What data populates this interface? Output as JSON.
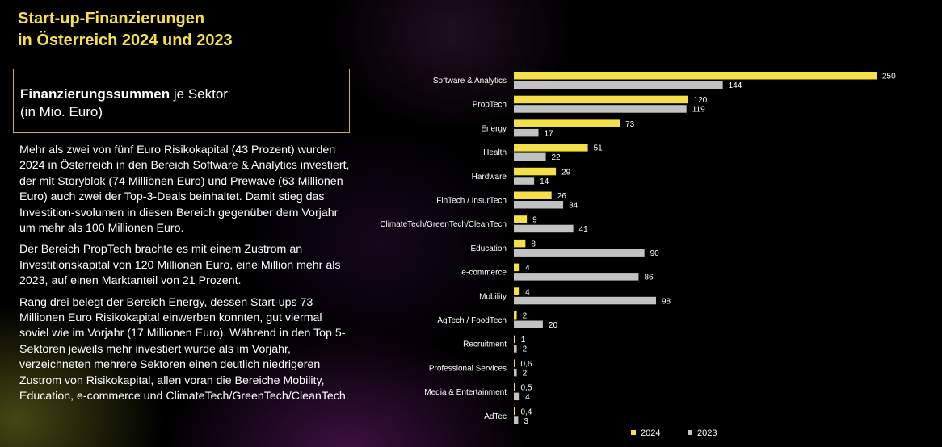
{
  "title": {
    "line1": "Start-up-Finanzierungen",
    "line2": "in Österreich 2024 und 2023"
  },
  "infobox": {
    "bold": "Finanzierungssummen",
    "rest": " je Sektor",
    "line2": "(in Mio. Euro)"
  },
  "paragraphs": [
    "Mehr als zwei von fünf Euro Risikokapital (43 Prozent) wurden 2024 in Österreich in den Bereich Software & Analytics investiert, der mit Storyblok (74 Millionen Euro) und Prewave (63 Millionen Euro) auch zwei der Top-3-Deals beinhaltet. Damit stieg das Investition-svolumen in diesen Bereich gegenüber dem Vorjahr um mehr als 100 Millionen Euro.",
    "Der Bereich PropTech brachte es mit einem Zustrom an Investitionskapital von 120 Millionen Euro, eine Million mehr als 2023, auf einen Marktanteil von 21 Prozent.",
    "Rang drei belegt der Bereich Energy, dessen Start-ups 73 Millionen Euro Risikokapital einwerben konnten, gut viermal soviel wie im Vorjahr (17 Millionen Euro). Während in den Top 5-Sektoren jeweils mehr investiert wurde als im Vorjahr, verzeichneten mehrere Sektoren einen deutlich niedrigeren Zustrom von Risikokapital, allen voran die Bereiche Mobility, Education, e-commerce und ClimateTech/GreenTech/CleanTech."
  ],
  "chart_data": {
    "type": "bar",
    "orientation": "horizontal",
    "categories": [
      "Software & Analytics",
      "PropTech",
      "Energy",
      "Health",
      "Hardware",
      "FinTech / InsurTech",
      "ClimateTech/GreenTech/CleanTech",
      "Education",
      "e-commerce",
      "Mobility",
      "AgTech / FoodTech",
      "Recruitment",
      "Professional Services",
      "Media & Entertainment",
      "AdTec"
    ],
    "series": [
      {
        "name": "2024",
        "color": "#f5e04a",
        "values": [
          250,
          120,
          73,
          51,
          29,
          26,
          9,
          8,
          4,
          4,
          2,
          1,
          0.6,
          0.5,
          0.4
        ],
        "labels": [
          "250",
          "120",
          "73",
          "51",
          "29",
          "26",
          "9",
          "8",
          "4",
          "4",
          "2",
          "1",
          "0,6",
          "0,5",
          "0,4"
        ]
      },
      {
        "name": "2023",
        "color": "#c2c2c2",
        "values": [
          144,
          119,
          17,
          22,
          14,
          34,
          41,
          90,
          86,
          98,
          20,
          2,
          2,
          4,
          3
        ],
        "labels": [
          "144",
          "119",
          "17",
          "22",
          "14",
          "34",
          "41",
          "90",
          "86",
          "98",
          "20",
          "2",
          "2",
          "4",
          "3"
        ]
      }
    ],
    "xlim": [
      0,
      250
    ],
    "axis_visible": false,
    "grid": false,
    "legend_position": "bottom-right"
  }
}
